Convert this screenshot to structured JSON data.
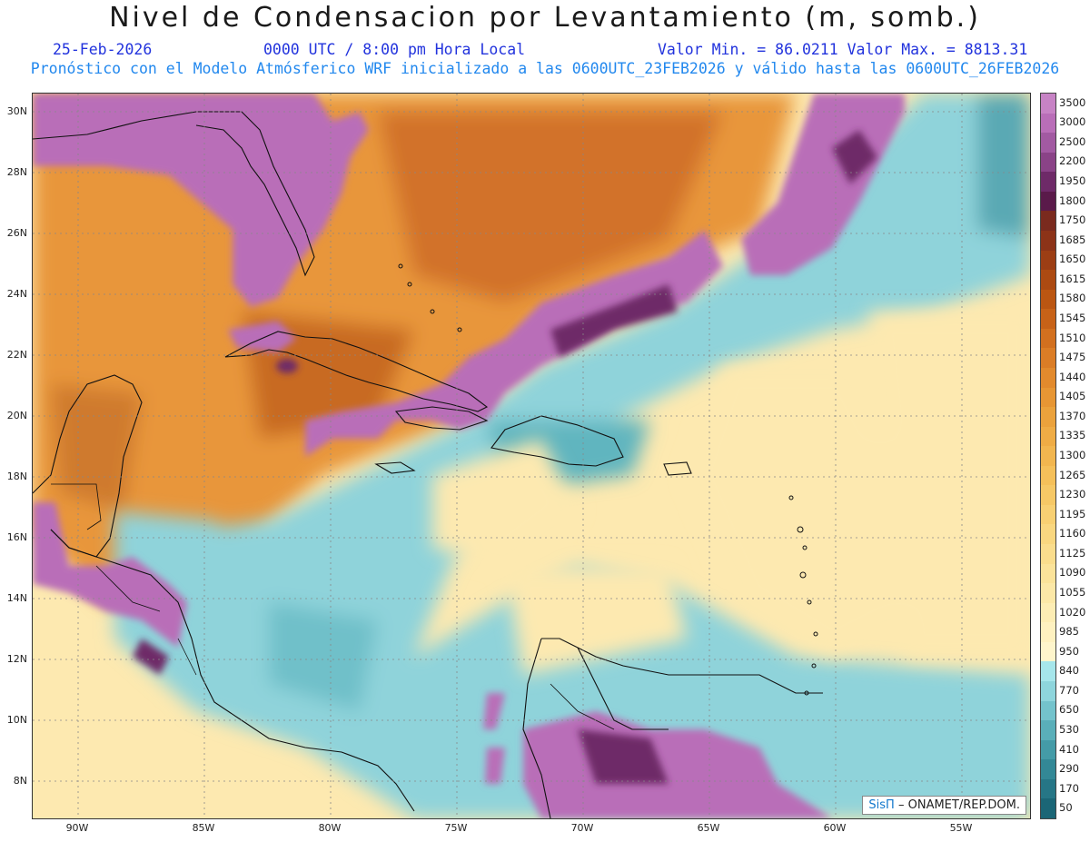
{
  "title": "Nivel de Condensacion por Levantamiento (m, somb.)",
  "subtitle": {
    "date": "25-Feb-2026",
    "time": "0000 UTC / 8:00 pm Hora Local",
    "minmax": "Valor Min. = 86.0211  Valor Max. = 8813.31",
    "model": "Pronóstico con el Modelo Atmósferico WRF inicializado a las 0600UTC_23FEB2026 y válido hasta las  0600UTC_26FEB2026"
  },
  "lat_labels": [
    "30N",
    "28N",
    "26N",
    "24N",
    "22N",
    "20N",
    "18N",
    "16N",
    "14N",
    "12N",
    "10N",
    "8N"
  ],
  "lon_labels": [
    "90W",
    "85W",
    "80W",
    "75W",
    "70W",
    "65W",
    "60W",
    "55W"
  ],
  "colorbar": {
    "labels": [
      "3500",
      "3000",
      "2500",
      "2200",
      "1950",
      "1800",
      "1750",
      "1685",
      "1650",
      "1615",
      "1580",
      "1545",
      "1510",
      "1475",
      "1440",
      "1405",
      "1370",
      "1335",
      "1300",
      "1265",
      "1230",
      "1195",
      "1160",
      "1125",
      "1090",
      "1055",
      "1020",
      "985",
      "950",
      "840",
      "770",
      "650",
      "530",
      "410",
      "290",
      "170",
      "50"
    ],
    "colors": [
      "#c783c5",
      "#b96eb8",
      "#a25aa2",
      "#8a4387",
      "#6e2a68",
      "#5a1a4a",
      "#7a2a1e",
      "#8c3318",
      "#9c3e14",
      "#ac4a12",
      "#bb5612",
      "#c76218",
      "#d2701f",
      "#db7d26",
      "#e28a2d",
      "#e79634",
      "#eba23c",
      "#efac45",
      "#f2b64f",
      "#f5c05a",
      "#f6c866",
      "#f8d073",
      "#f9d780",
      "#fadd8d",
      "#fbe39a",
      "#fce8a7",
      "#fdedb4",
      "#fef1c0",
      "#fef5cc",
      "#a6e6eb",
      "#8ed5dc",
      "#74c3cc",
      "#5aafb9",
      "#449ba7",
      "#338896",
      "#267686",
      "#1b6676"
    ]
  },
  "credit": {
    "logo": "SisΠ",
    "text": " – ONAMET/REP.DOM."
  }
}
